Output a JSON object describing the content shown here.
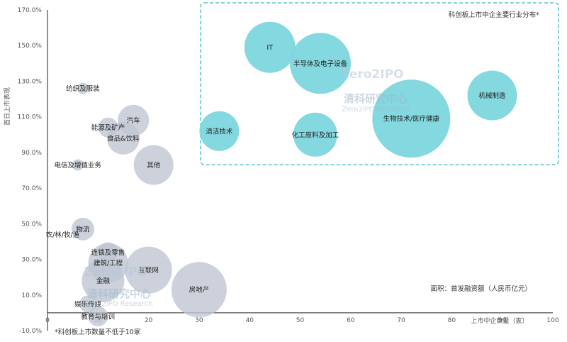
{
  "chart_data": {
    "type": "scatter",
    "subtype": "bubble",
    "ylabel": "首日上市表现",
    "xlabel": "上市中企数量（家）",
    "xlim": [
      0,
      100
    ],
    "ylim": [
      -0.1,
      1.7
    ],
    "x_ticks": [
      "0",
      "10",
      "20",
      "30",
      "40",
      "50",
      "60",
      "70",
      "80",
      "90",
      "100"
    ],
    "y_ticks": [
      "-10.0%",
      "10.0%",
      "30.0%",
      "50.0%",
      "70.0%",
      "90.0%",
      "110.0%",
      "130.0%",
      "150.0%",
      "170.0%"
    ],
    "highlight_box_label": "科创板上市中企主要行业分布*",
    "size_note": "面积：首发融资额（人民币亿元）",
    "footnote": "*科创板上市数量不低于10家",
    "watermark_cn": "清科研究中心",
    "watermark_en": "Zero2IPO Research",
    "colors": {
      "grey": "#BFC5D2",
      "teal": "#7DD6DE",
      "box": "#3FB8C4"
    },
    "bubbles": [
      {
        "label": "IT",
        "x": 44,
        "y": 1.49,
        "r": 36,
        "group": "teal"
      },
      {
        "label": "半导体及电子设备",
        "x": 54,
        "y": 1.4,
        "r": 43,
        "group": "teal"
      },
      {
        "label": "机械制造",
        "x": 88,
        "y": 1.22,
        "r": 35,
        "group": "teal"
      },
      {
        "label": "生物技术/医疗健康",
        "x": 72,
        "y": 1.09,
        "r": 55,
        "group": "teal"
      },
      {
        "label": "清洁技术",
        "x": 34,
        "y": 1.02,
        "r": 28,
        "group": "teal"
      },
      {
        "label": "化工原料及加工",
        "x": 53,
        "y": 1.0,
        "r": 31,
        "group": "teal"
      },
      {
        "label": "纺织及服装",
        "x": 7,
        "y": 1.26,
        "r": 8,
        "group": "grey"
      },
      {
        "label": "汽车",
        "x": 17,
        "y": 1.08,
        "r": 22,
        "group": "grey"
      },
      {
        "label": "能源及矿产",
        "x": 12,
        "y": 1.04,
        "r": 14,
        "group": "grey"
      },
      {
        "label": "食品&饮料",
        "x": 15,
        "y": 0.98,
        "r": 23,
        "group": "grey"
      },
      {
        "label": "其他",
        "x": 21,
        "y": 0.83,
        "r": 28,
        "group": "grey"
      },
      {
        "label": "电信及增值业务",
        "x": 6,
        "y": 0.83,
        "r": 8,
        "group": "grey"
      },
      {
        "label": "物流",
        "x": 7,
        "y": 0.47,
        "r": 16,
        "group": "grey"
      },
      {
        "label": "农/林/牧/渔",
        "x": 3,
        "y": 0.44,
        "r": 0,
        "group": "grey"
      },
      {
        "label": "连锁及零售",
        "x": 12,
        "y": 0.34,
        "r": 14,
        "group": "grey"
      },
      {
        "label": "建筑/工程",
        "x": 12,
        "y": 0.28,
        "r": 28,
        "group": "grey"
      },
      {
        "label": "互联网",
        "x": 20,
        "y": 0.24,
        "r": 33,
        "group": "grey"
      },
      {
        "label": "金融",
        "x": 11,
        "y": 0.18,
        "r": 30,
        "group": "grey"
      },
      {
        "label": "房地产",
        "x": 30,
        "y": 0.13,
        "r": 39,
        "group": "grey"
      },
      {
        "label": "娱乐传媒",
        "x": 8,
        "y": 0.05,
        "r": 12,
        "group": "grey"
      },
      {
        "label": "教育与培训",
        "x": 10,
        "y": -0.02,
        "r": 14,
        "group": "grey"
      }
    ]
  }
}
